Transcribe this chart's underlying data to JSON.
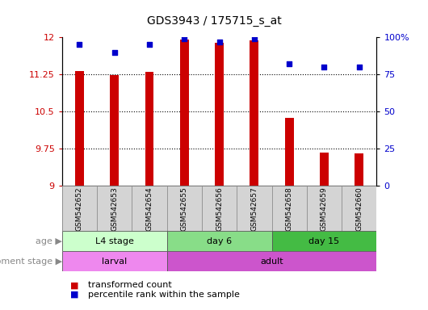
{
  "title": "GDS3943 / 175715_s_at",
  "samples": [
    "GSM542652",
    "GSM542653",
    "GSM542654",
    "GSM542655",
    "GSM542656",
    "GSM542657",
    "GSM542658",
    "GSM542659",
    "GSM542660"
  ],
  "transformed_count": [
    11.32,
    11.24,
    11.3,
    11.95,
    11.88,
    11.93,
    10.37,
    9.67,
    9.65
  ],
  "percentile_rank": [
    95,
    90,
    95,
    99,
    97,
    99,
    82,
    80,
    80
  ],
  "ylim_left": [
    9,
    12
  ],
  "ylim_right": [
    0,
    100
  ],
  "yticks_left": [
    9,
    9.75,
    10.5,
    11.25,
    12
  ],
  "yticks_right": [
    0,
    25,
    50,
    75,
    100
  ],
  "bar_color": "#cc0000",
  "dot_color": "#0000cc",
  "bar_width": 0.25,
  "age_groups": [
    {
      "label": "L4 stage",
      "start": 0,
      "end": 3,
      "color": "#ccffcc"
    },
    {
      "label": "day 6",
      "start": 3,
      "end": 6,
      "color": "#88dd88"
    },
    {
      "label": "day 15",
      "start": 6,
      "end": 9,
      "color": "#44bb44"
    }
  ],
  "dev_groups": [
    {
      "label": "larval",
      "start": 0,
      "end": 3,
      "color": "#ee88ee"
    },
    {
      "label": "adult",
      "start": 3,
      "end": 9,
      "color": "#cc55cc"
    }
  ],
  "legend_bar_label": "transformed count",
  "legend_dot_label": "percentile rank within the sample",
  "background_color": "#ffffff",
  "tick_label_color_left": "#cc0000",
  "tick_label_color_right": "#0000cc",
  "axis_label_age": "age",
  "axis_label_dev": "development stage",
  "sample_bg_color": "#d4d4d4",
  "title_fontsize": 10
}
